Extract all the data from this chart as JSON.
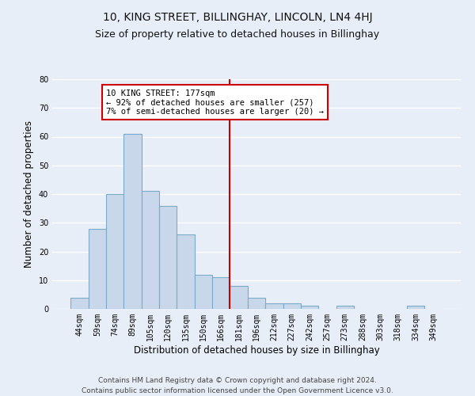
{
  "title": "10, KING STREET, BILLINGHAY, LINCOLN, LN4 4HJ",
  "subtitle": "Size of property relative to detached houses in Billinghay",
  "xlabel": "Distribution of detached houses by size in Billinghay",
  "ylabel": "Number of detached properties",
  "bar_labels": [
    "44sqm",
    "59sqm",
    "74sqm",
    "89sqm",
    "105sqm",
    "120sqm",
    "135sqm",
    "150sqm",
    "166sqm",
    "181sqm",
    "196sqm",
    "212sqm",
    "227sqm",
    "242sqm",
    "257sqm",
    "273sqm",
    "288sqm",
    "303sqm",
    "318sqm",
    "334sqm",
    "349sqm"
  ],
  "bar_values": [
    4,
    28,
    40,
    61,
    41,
    36,
    26,
    12,
    11,
    8,
    4,
    2,
    2,
    1,
    0,
    1,
    0,
    0,
    0,
    1,
    0
  ],
  "bar_color": "#c8d8ea",
  "bar_edge_color": "#7aaac8",
  "ylim": [
    0,
    80
  ],
  "yticks": [
    0,
    10,
    20,
    30,
    40,
    50,
    60,
    70,
    80
  ],
  "vline_index": 9,
  "vline_color": "#cc0000",
  "annotation_text": "10 KING STREET: 177sqm\n← 92% of detached houses are smaller (257)\n7% of semi-detached houses are larger (20) →",
  "annotation_box_color": "#ffffff",
  "annotation_box_edge": "#cc0000",
  "footer": "Contains HM Land Registry data © Crown copyright and database right 2024.\nContains public sector information licensed under the Open Government Licence v3.0.",
  "background_color": "#e8eef8",
  "grid_color": "#ffffff",
  "title_fontsize": 10,
  "subtitle_fontsize": 9,
  "tick_fontsize": 7,
  "ylabel_fontsize": 8.5,
  "xlabel_fontsize": 8.5,
  "footer_fontsize": 6.5
}
